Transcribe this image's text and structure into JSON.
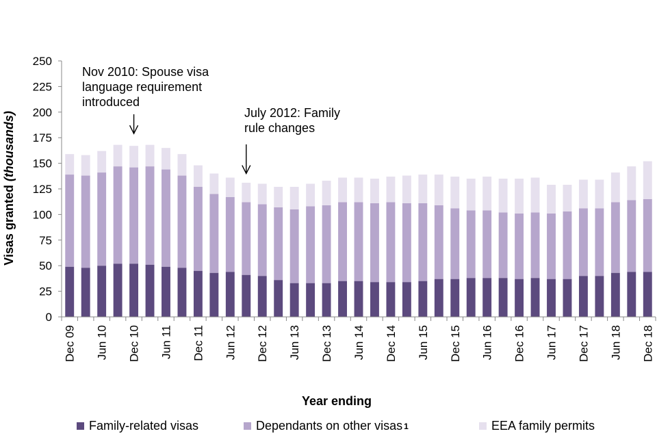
{
  "chart_data": {
    "type": "bar",
    "stacked": true,
    "title": "",
    "xlabel": "Year ending",
    "ylabel_main": "Visas granted ",
    "ylabel_unit": "(thousands)",
    "ylim": [
      0,
      250
    ],
    "yticks": [
      0,
      25,
      50,
      75,
      100,
      125,
      150,
      175,
      200,
      225,
      250
    ],
    "categories": [
      "Dec 09",
      "Mar 10",
      "Jun 10",
      "Sep 10",
      "Dec 10",
      "Mar 11",
      "Jun 11",
      "Sep 11",
      "Dec 11",
      "Mar 12",
      "Jun 12",
      "Sep 12",
      "Dec 12",
      "Mar 13",
      "Jun 13",
      "Sep 13",
      "Dec 13",
      "Mar 14",
      "Jun 14",
      "Sep 14",
      "Dec 14",
      "Mar 15",
      "Jun 15",
      "Sep 15",
      "Dec 15",
      "Mar 16",
      "Jun 16",
      "Sep 16",
      "Dec 16",
      "Mar 17",
      "Jun 17",
      "Sep 17",
      "Dec 17",
      "Mar 18",
      "Jun 18",
      "Sep 18",
      "Dec 18"
    ],
    "xtick_labels": [
      "Dec 09",
      "",
      "Jun 10",
      "",
      "Dec 10",
      "",
      "Jun 11",
      "",
      "Dec 11",
      "",
      "Jun 12",
      "",
      "Dec 12",
      "",
      "Jun 13",
      "",
      "Dec 13",
      "",
      "Jun 14",
      "",
      "Dec 14",
      "",
      "Jun 15",
      "",
      "Dec 15",
      "",
      "Jun 16",
      "",
      "Dec 16",
      "",
      "Jun 17",
      "",
      "Dec 17",
      "",
      "Jun 18",
      "",
      "Dec 18"
    ],
    "series": [
      {
        "name": "Family-related visas",
        "color": "#5c4a7e",
        "values": [
          49,
          48,
          50,
          52,
          52,
          51,
          49,
          48,
          45,
          43,
          44,
          41,
          40,
          36,
          33,
          33,
          33,
          35,
          35,
          34,
          34,
          34,
          35,
          37,
          37,
          38,
          38,
          38,
          37,
          38,
          37,
          37,
          40,
          40,
          43,
          44,
          44
        ]
      },
      {
        "name": "Dependants on other visas",
        "superscript": "1",
        "color": "#b6a6cc",
        "values": [
          90,
          90,
          91,
          95,
          94,
          96,
          95,
          90,
          82,
          77,
          73,
          71,
          70,
          71,
          72,
          75,
          76,
          77,
          77,
          77,
          78,
          77,
          76,
          72,
          69,
          66,
          66,
          64,
          64,
          64,
          64,
          66,
          66,
          66,
          69,
          70,
          71
        ]
      },
      {
        "name": "EEA family permits",
        "color": "#e6e0ee",
        "values": [
          20,
          20,
          21,
          21,
          21,
          21,
          21,
          21,
          21,
          20,
          19,
          19,
          20,
          20,
          22,
          22,
          24,
          24,
          24,
          24,
          25,
          27,
          28,
          30,
          31,
          31,
          33,
          33,
          34,
          34,
          28,
          26,
          28,
          28,
          29,
          33,
          37
        ]
      }
    ],
    "annotations": [
      {
        "id": "spouse",
        "lines": [
          "Nov 2010: Spouse visa",
          "language requirement",
          "introduced"
        ],
        "category": "Dec 10",
        "arrow_to_value": 175
      },
      {
        "id": "family",
        "lines": [
          "July 2012: Family",
          "rule changes"
        ],
        "category": "Sep 12",
        "arrow_to_value": 136
      }
    ],
    "legend_position": "bottom",
    "grid": false
  }
}
